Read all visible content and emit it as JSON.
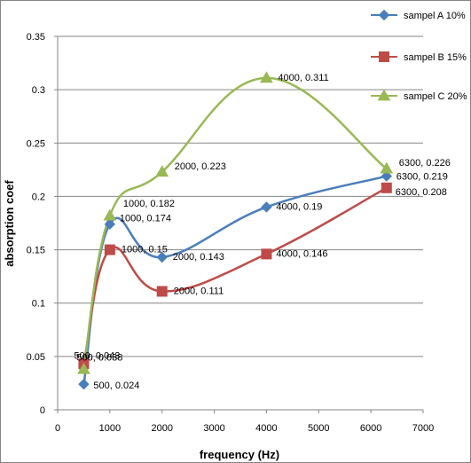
{
  "chart_data": {
    "type": "line",
    "title": "",
    "xlabel": "frequency (Hz)",
    "ylabel": "absorption coef",
    "xlim": [
      0,
      7000
    ],
    "ylim": [
      0,
      0.35
    ],
    "x_ticks": [
      "0",
      "1000",
      "2000",
      "3000",
      "4000",
      "5000",
      "6000",
      "7000"
    ],
    "y_ticks": [
      "0",
      "0.05",
      "0.1",
      "0.15",
      "0.2",
      "0.25",
      "0.3",
      "0.35"
    ],
    "grid": "horizontal",
    "legend_position": "top-right",
    "smoothed": true,
    "x": [
      500,
      1000,
      2000,
      4000,
      6300
    ],
    "series": [
      {
        "name": "sampel A 10%",
        "color": "#4a7ebb",
        "marker": "diamond",
        "values": [
          0.024,
          0.174,
          0.143,
          0.19,
          0.219
        ],
        "labels": [
          "500, 0.024",
          "1000, 0.174",
          "2000, 0.143",
          "4000, 0.19",
          "6300, 0.219"
        ]
      },
      {
        "name": "sampel B 15%",
        "color": "#be4b48",
        "marker": "square",
        "values": [
          0.043,
          0.15,
          0.111,
          0.146,
          0.208
        ],
        "labels": [
          "500, 0.043",
          "1000, 0.15",
          "2000, 0.111",
          "4000, 0.146",
          "6300, 0.208"
        ]
      },
      {
        "name": "sampel C 20%",
        "color": "#98b954",
        "marker": "triangle",
        "values": [
          0.038,
          0.182,
          0.223,
          0.311,
          0.226
        ],
        "labels": [
          "500, 0.038",
          "1000, 0.182",
          "2000, 0.223",
          "4000, 0.311",
          "6300, 0.226"
        ]
      }
    ]
  }
}
